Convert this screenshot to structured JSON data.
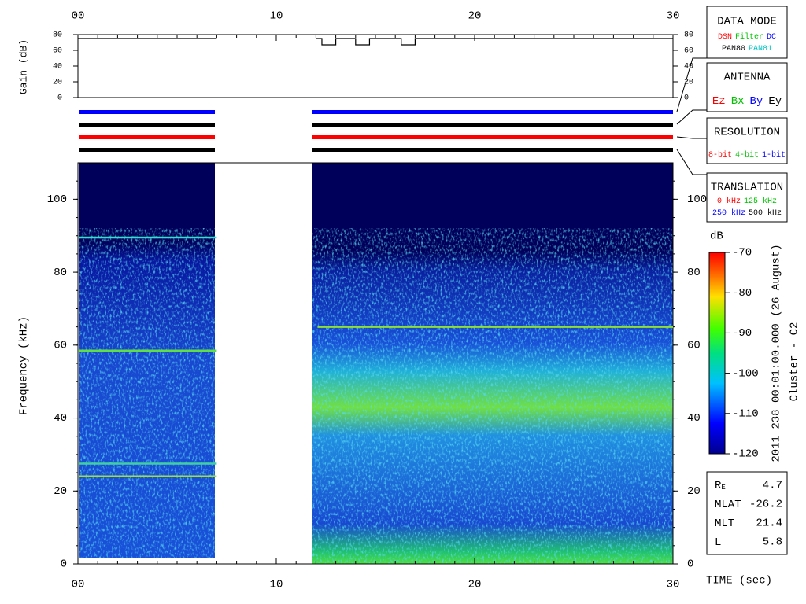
{
  "chart_data": [
    {
      "type": "line",
      "ylabel": "Gain (dB)",
      "xlim": [
        0,
        30
      ],
      "xticks": [
        {
          "value": 0,
          "label": "00"
        },
        10,
        20,
        30
      ],
      "ylim": [
        0,
        80
      ],
      "yticks": [
        0,
        20,
        40,
        60,
        80
      ],
      "x": [
        0,
        7,
        9.5,
        12,
        12.3,
        12.3,
        13,
        13,
        14,
        14,
        14.7,
        14.7,
        16.3,
        16.3,
        17,
        17,
        30
      ],
      "series": [
        {
          "color": "#000000",
          "values": [
            75,
            75,
            null,
            75,
            75,
            67,
            67,
            75,
            75,
            67,
            67,
            75,
            75,
            67,
            67,
            75,
            75
          ]
        }
      ]
    },
    {
      "type": "heatmap",
      "ylabel": "Frequency (kHz)",
      "xlabel": "TIME (sec)",
      "xlim": [
        0,
        30
      ],
      "xticks": [
        {
          "value": 0,
          "label": "00"
        },
        10,
        20,
        30
      ],
      "ylim": [
        0,
        110
      ],
      "yticks": [
        0,
        20,
        40,
        60,
        80,
        100
      ],
      "lines": [
        {
          "y": 89.5,
          "x": [
            0,
            7
          ],
          "color": "#30e0d0"
        },
        {
          "y": 58.5,
          "x": [
            0,
            7
          ],
          "color": "#60e040"
        },
        {
          "y": 27.5,
          "x": [
            0,
            7
          ],
          "color": "#40d0a0"
        },
        {
          "y": 24,
          "x": [
            0,
            7
          ],
          "color": "#a0e030"
        },
        {
          "y": 65,
          "x": [
            12,
            30
          ],
          "color": "#90e030"
        }
      ]
    },
    {
      "type": "colorbar",
      "label": "dB",
      "zlim": [
        -120,
        -70
      ],
      "zticks": [
        -120,
        -110,
        -100,
        -90,
        -80,
        -70
      ],
      "caption": [
        "2011 238 00:01:00.000 (26 August)",
        "Cluster - C2"
      ]
    }
  ],
  "panels": [
    {
      "title": "DATA MODE",
      "rows": [
        [
          {
            "text": "DSN",
            "color": "#ff0000"
          },
          {
            "text": "Filter",
            "color": "#00c000"
          },
          {
            "text": "DC",
            "color": "#0000ff"
          }
        ],
        [
          {
            "text": "PAN80",
            "color": "#000000"
          },
          {
            "text": "PAN81",
            "color": "#00c0c0"
          }
        ]
      ]
    },
    {
      "title": "ANTENNA",
      "rows": [
        [
          {
            "text": "Ez",
            "color": "#ff0000"
          },
          {
            "text": "Bx",
            "color": "#00c000"
          },
          {
            "text": "By",
            "color": "#0000ff"
          },
          {
            "text": "Ey",
            "color": "#000000"
          }
        ]
      ]
    },
    {
      "title": "RESOLUTION",
      "rows": [
        [
          {
            "text": "8-bit",
            "color": "#ff0000"
          },
          {
            "text": "4-bit",
            "color": "#00c000"
          },
          {
            "text": "1-bit",
            "color": "#0000ff"
          }
        ]
      ]
    },
    {
      "title": "TRANSLATION",
      "rows": [
        [
          {
            "text": "0 kHz",
            "color": "#ff0000"
          },
          {
            "text": "125 kHz",
            "color": "#00c000"
          }
        ],
        [
          {
            "text": "250 kHz",
            "color": "#0000ff"
          },
          {
            "text": "500 kHz",
            "color": "#000000"
          }
        ]
      ]
    }
  ],
  "orbit": [
    {
      "label": "R",
      "sub": "E",
      "value": 4.7
    },
    {
      "label": "MLAT",
      "value": -26.2
    },
    {
      "label": "MLT",
      "value": 21.4
    },
    {
      "label": "L",
      "value": 5.8
    }
  ]
}
